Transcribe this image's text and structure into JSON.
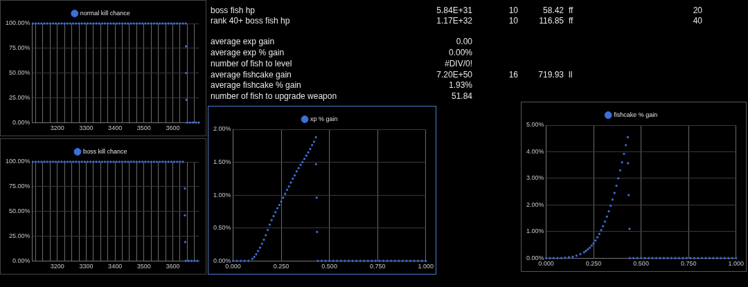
{
  "chart_data": [
    {
      "type": "scatter",
      "xlim": [
        3113,
        3690
      ],
      "ylim": [
        0,
        100
      ],
      "legend": "top",
      "marker": "circle",
      "grid": true,
      "xticks": [
        {
          "value": 3125,
          "label": null
        },
        {
          "value": 3150,
          "label": null
        },
        {
          "value": 3175,
          "label": null
        },
        3200,
        {
          "value": 3225,
          "label": null
        },
        {
          "value": 3250,
          "label": null
        },
        {
          "value": 3275,
          "label": null
        },
        3300,
        {
          "value": 3325,
          "label": null
        },
        {
          "value": 3350,
          "label": null
        },
        {
          "value": 3375,
          "label": null
        },
        3400,
        {
          "value": 3425,
          "label": null
        },
        {
          "value": 3450,
          "label": null
        },
        {
          "value": 3475,
          "label": null
        },
        3500,
        {
          "value": 3525,
          "label": null
        },
        {
          "value": 3550,
          "label": null
        },
        {
          "value": 3575,
          "label": null
        },
        3600,
        {
          "value": 3625,
          "label": null
        },
        {
          "value": 3650,
          "label": null
        },
        {
          "value": 3675,
          "label": null
        }
      ],
      "yticks": [
        {
          "value": 0,
          "label": "0.00%"
        },
        {
          "value": 25,
          "label": "25.00%"
        },
        {
          "value": 50,
          "label": "50.00%"
        },
        {
          "value": 75,
          "label": "75.00%"
        },
        {
          "value": 100,
          "label": "100.00%"
        }
      ],
      "series": [
        {
          "name": "normal kill chance",
          "color": "#3d6fd8",
          "x": [
            3115,
            3125,
            3135,
            3145,
            3155,
            3165,
            3175,
            3185,
            3195,
            3205,
            3215,
            3225,
            3235,
            3245,
            3255,
            3265,
            3275,
            3285,
            3295,
            3305,
            3315,
            3325,
            3335,
            3345,
            3355,
            3365,
            3375,
            3385,
            3395,
            3405,
            3415,
            3425,
            3435,
            3445,
            3455,
            3465,
            3475,
            3485,
            3495,
            3505,
            3515,
            3525,
            3535,
            3545,
            3555,
            3565,
            3575,
            3585,
            3595,
            3605,
            3615,
            3625,
            3635,
            3645,
            3646,
            3646,
            3647,
            3650,
            3660,
            3670,
            3680,
            3690
          ],
          "values": [
            100,
            100,
            100,
            100,
            100,
            100,
            100,
            100,
            100,
            100,
            100,
            100,
            100,
            100,
            100,
            100,
            100,
            100,
            100,
            100,
            100,
            100,
            100,
            100,
            100,
            100,
            100,
            100,
            100,
            100,
            100,
            100,
            100,
            100,
            100,
            100,
            100,
            100,
            100,
            100,
            100,
            100,
            100,
            100,
            100,
            100,
            100,
            100,
            100,
            100,
            100,
            100,
            100,
            100,
            77,
            50,
            23,
            0,
            0,
            0,
            0,
            0
          ]
        }
      ]
    },
    {
      "type": "scatter",
      "xlim": [
        3113,
        3690
      ],
      "ylim": [
        0,
        100
      ],
      "legend": "top",
      "marker": "circle",
      "grid": true,
      "xticks": [
        {
          "value": 3125,
          "label": null
        },
        {
          "value": 3150,
          "label": null
        },
        {
          "value": 3175,
          "label": null
        },
        3200,
        {
          "value": 3225,
          "label": null
        },
        {
          "value": 3250,
          "label": null
        },
        {
          "value": 3275,
          "label": null
        },
        3300,
        {
          "value": 3325,
          "label": null
        },
        {
          "value": 3350,
          "label": null
        },
        {
          "value": 3375,
          "label": null
        },
        3400,
        {
          "value": 3425,
          "label": null
        },
        {
          "value": 3450,
          "label": null
        },
        {
          "value": 3475,
          "label": null
        },
        3500,
        {
          "value": 3525,
          "label": null
        },
        {
          "value": 3550,
          "label": null
        },
        {
          "value": 3575,
          "label": null
        },
        3600,
        {
          "value": 3625,
          "label": null
        },
        {
          "value": 3650,
          "label": null
        },
        {
          "value": 3675,
          "label": null
        }
      ],
      "yticks": [
        {
          "value": 0,
          "label": "0.00%"
        },
        {
          "value": 25,
          "label": "25.00%"
        },
        {
          "value": 50,
          "label": "50.00%"
        },
        {
          "value": 75,
          "label": "75.00%"
        },
        {
          "value": 100,
          "label": "100.00%"
        }
      ],
      "series": [
        {
          "name": "boss kill chance",
          "color": "#3d6fd8",
          "x": [
            3115,
            3125,
            3135,
            3145,
            3155,
            3165,
            3175,
            3185,
            3195,
            3205,
            3215,
            3225,
            3235,
            3245,
            3255,
            3265,
            3275,
            3285,
            3295,
            3305,
            3315,
            3325,
            3335,
            3345,
            3355,
            3365,
            3375,
            3385,
            3395,
            3405,
            3415,
            3425,
            3435,
            3445,
            3455,
            3465,
            3475,
            3485,
            3495,
            3505,
            3515,
            3525,
            3535,
            3545,
            3555,
            3565,
            3575,
            3585,
            3595,
            3605,
            3615,
            3625,
            3635,
            3642,
            3642,
            3643,
            3645,
            3655,
            3665,
            3675,
            3685
          ],
          "values": [
            100,
            100,
            100,
            100,
            100,
            100,
            100,
            100,
            100,
            100,
            100,
            100,
            100,
            100,
            100,
            100,
            100,
            100,
            100,
            100,
            100,
            100,
            100,
            100,
            100,
            100,
            100,
            100,
            100,
            100,
            100,
            100,
            100,
            100,
            100,
            100,
            100,
            100,
            100,
            100,
            100,
            100,
            100,
            100,
            100,
            100,
            100,
            100,
            100,
            100,
            100,
            100,
            100,
            73,
            46,
            19,
            0,
            0,
            0,
            0,
            0
          ]
        }
      ]
    },
    {
      "type": "other",
      "annotations": [
        "boss fish hp",
        "5.84E+31",
        "10",
        "58.42",
        "ff",
        "20",
        "rank 40+ boss fish hp",
        "1.17E+32",
        "10",
        "116.85",
        "ff",
        "40",
        "average exp gain",
        "0.00",
        "average exp % gain",
        "0.00%",
        "number of fish to level",
        "#DIV/0!",
        "average fishcake gain",
        "7.20E+50",
        "16",
        "719.93",
        "ll",
        "average fishcake % gain",
        "1.93%",
        "number of fish to upgrade weapon",
        "51.84"
      ]
    },
    {
      "type": "scatter",
      "xlim": [
        0,
        1
      ],
      "ylim": [
        0,
        2
      ],
      "legend": "top",
      "marker": "circle",
      "grid": true,
      "xticks": [
        {
          "value": 0,
          "label": "0.000"
        },
        {
          "value": 0.25,
          "label": "0.250"
        },
        {
          "value": 0.5,
          "label": "0.500"
        },
        {
          "value": 0.75,
          "label": "0.750"
        },
        {
          "value": 1,
          "label": "1.000"
        }
      ],
      "yticks": [
        {
          "value": 0,
          "label": "0.00%"
        },
        {
          "value": 0.5,
          "label": "0.50%"
        },
        {
          "value": 1,
          "label": "1.00%"
        },
        {
          "value": 1.5,
          "label": "1.50%"
        },
        {
          "value": 2,
          "label": "2.00%"
        }
      ],
      "series": [
        {
          "name": "xp % gain",
          "color": "#3d6fd8",
          "x": [
            0,
            0.02,
            0.04,
            0.06,
            0.08,
            0.1,
            0.11,
            0.12,
            0.13,
            0.14,
            0.15,
            0.16,
            0.17,
            0.18,
            0.19,
            0.2,
            0.21,
            0.22,
            0.23,
            0.24,
            0.25,
            0.26,
            0.27,
            0.28,
            0.29,
            0.3,
            0.31,
            0.32,
            0.33,
            0.34,
            0.35,
            0.36,
            0.37,
            0.38,
            0.39,
            0.4,
            0.41,
            0.42,
            0.43,
            0.43,
            0.434,
            0.436,
            0.44,
            0.46,
            0.48,
            0.5,
            0.52,
            0.54,
            0.56,
            0.58,
            0.6,
            0.62,
            0.64,
            0.66,
            0.68,
            0.7,
            0.72,
            0.74,
            0.76,
            0.78,
            0.8,
            0.82,
            0.84,
            0.86,
            0.88,
            0.9,
            0.92,
            0.94,
            0.96,
            0.98,
            1
          ],
          "values": [
            0,
            0,
            0,
            0,
            0,
            0.03,
            0.06,
            0.1,
            0.15,
            0.2,
            0.26,
            0.32,
            0.39,
            0.47,
            0.55,
            0.62,
            0.68,
            0.74,
            0.8,
            0.85,
            0.9,
            0.96,
            1.02,
            1.08,
            1.13,
            1.19,
            1.25,
            1.3,
            1.36,
            1.41,
            1.46,
            1.5,
            1.55,
            1.6,
            1.65,
            1.7,
            1.76,
            1.81,
            1.88,
            1.47,
            0.96,
            0.44,
            0,
            0,
            0,
            0,
            0,
            0,
            0,
            0,
            0,
            0,
            0,
            0,
            0,
            0,
            0,
            0,
            0,
            0,
            0,
            0,
            0,
            0,
            0,
            0,
            0,
            0,
            0,
            0,
            0
          ]
        }
      ]
    },
    {
      "type": "scatter",
      "xlim": [
        0,
        1
      ],
      "ylim": [
        0,
        5
      ],
      "legend": "top",
      "marker": "circle",
      "grid": true,
      "xticks": [
        {
          "value": 0,
          "label": "0.000"
        },
        {
          "value": 0.25,
          "label": "0.250"
        },
        {
          "value": 0.5,
          "label": "0.500"
        },
        {
          "value": 0.75,
          "label": "0.750"
        },
        {
          "value": 1,
          "label": "1.000"
        }
      ],
      "yticks": [
        {
          "value": 0,
          "label": "0.00%"
        },
        {
          "value": 1,
          "label": "1.00%"
        },
        {
          "value": 2,
          "label": "2.00%"
        },
        {
          "value": 3,
          "label": "3.00%"
        },
        {
          "value": 4,
          "label": "4.00%"
        },
        {
          "value": 5,
          "label": "5.00%"
        }
      ],
      "series": [
        {
          "name": "fishcake % gain",
          "color": "#3d6fd8",
          "x": [
            0,
            0.02,
            0.04,
            0.06,
            0.08,
            0.1,
            0.12,
            0.14,
            0.16,
            0.18,
            0.2,
            0.21,
            0.22,
            0.23,
            0.24,
            0.25,
            0.26,
            0.27,
            0.28,
            0.29,
            0.3,
            0.31,
            0.32,
            0.33,
            0.34,
            0.35,
            0.36,
            0.37,
            0.38,
            0.39,
            0.4,
            0.41,
            0.42,
            0.43,
            0.431,
            0.435,
            0.439,
            0.44,
            0.46,
            0.48,
            0.5,
            0.52,
            0.54,
            0.56,
            0.58,
            0.6,
            0.62,
            0.64,
            0.66,
            0.68,
            0.7,
            0.72,
            0.74,
            0.76,
            0.78,
            0.8,
            0.82,
            0.84,
            0.86,
            0.88,
            0.9,
            0.92,
            0.94,
            0.96,
            0.98,
            1
          ],
          "values": [
            0,
            0,
            0,
            0,
            0,
            0.01,
            0.03,
            0.05,
            0.09,
            0.15,
            0.22,
            0.27,
            0.33,
            0.39,
            0.47,
            0.55,
            0.66,
            0.78,
            0.91,
            1.05,
            1.2,
            1.37,
            1.56,
            1.76,
            1.97,
            2.2,
            2.45,
            2.72,
            3,
            3.3,
            3.6,
            3.92,
            4.25,
            4.55,
            3.57,
            2.37,
            1.1,
            0,
            0,
            0,
            0,
            0,
            0,
            0,
            0,
            0,
            0,
            0,
            0,
            0,
            0,
            0,
            0,
            0,
            0,
            0,
            0,
            0,
            0,
            0,
            0,
            0,
            0,
            0,
            0,
            0
          ]
        }
      ]
    }
  ]
}
